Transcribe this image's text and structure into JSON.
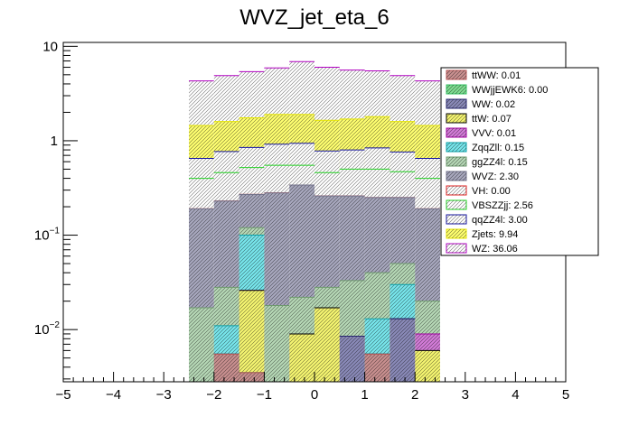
{
  "chart_data": {
    "type": "bar",
    "stacked": true,
    "title": "WVZ_jet_eta_6",
    "xlabel": "",
    "ylabel": "",
    "yscale": "log",
    "xlim": [
      -5,
      5
    ],
    "ylim": [
      0.0028,
      11
    ],
    "x_ticks": [
      -5,
      -4,
      -3,
      -2,
      -1,
      0,
      1,
      2,
      3,
      4,
      5
    ],
    "x_tick_labels": [
      "−5",
      "−4",
      "−3",
      "−2",
      "−1",
      "0",
      "1",
      "2",
      "3",
      "4",
      "5"
    ],
    "y_ticks": [
      {
        "value": 10,
        "label": "10",
        "sup": ""
      },
      {
        "value": 1,
        "label": "1",
        "sup": ""
      },
      {
        "value": 0.1,
        "label": "10",
        "sup": "−1"
      },
      {
        "value": 0.01,
        "label": "10",
        "sup": "−2"
      }
    ],
    "bin_edges": [
      -2.5,
      -2,
      -1.5,
      -1,
      -0.5,
      0,
      0.5,
      1,
      1.5,
      2,
      2.5
    ],
    "cumulative_top": {
      "ttWW": [
        0,
        0.0055,
        0.0035,
        0,
        0,
        0,
        0,
        0.0055,
        0,
        0.0028
      ],
      "WWjjEWK6": [
        0,
        0.0055,
        0.0035,
        0,
        0,
        0,
        0,
        0.0055,
        0,
        0.0028
      ],
      "WW": [
        0,
        0.0055,
        0.0035,
        0,
        0,
        0,
        0.0085,
        0.0055,
        0.013,
        0.0028
      ],
      "ttW": [
        0,
        0.0055,
        0.026,
        0,
        0.009,
        0.017,
        0.0085,
        0.0055,
        0.013,
        0.006
      ],
      "VVV": [
        0,
        0.0055,
        0.026,
        0,
        0.009,
        0.017,
        0.0085,
        0.0055,
        0.013,
        0.009
      ],
      "ZqqZll": [
        0,
        0.011,
        0.1,
        0,
        0.009,
        0.017,
        0.0085,
        0.013,
        0.03,
        0.009
      ],
      "ggZZ4l": [
        0.017,
        0.028,
        0.12,
        0.018,
        0.022,
        0.028,
        0.033,
        0.04,
        0.05,
        0.02
      ],
      "WVZ": [
        0.19,
        0.23,
        0.27,
        0.28,
        0.34,
        0.26,
        0.26,
        0.25,
        0.25,
        0.19
      ],
      "VH": [
        0.19,
        0.23,
        0.27,
        0.28,
        0.34,
        0.26,
        0.26,
        0.25,
        0.25,
        0.19
      ],
      "VBSZZjj": [
        0.4,
        0.46,
        0.52,
        0.55,
        0.55,
        0.46,
        0.5,
        0.5,
        0.47,
        0.4
      ],
      "qqZZ4l": [
        0.65,
        0.77,
        0.85,
        0.92,
        0.94,
        0.78,
        0.8,
        0.84,
        0.76,
        0.65
      ],
      "Zjets": [
        1.45,
        1.6,
        1.75,
        1.9,
        1.9,
        1.65,
        1.7,
        1.8,
        1.6,
        1.45
      ],
      "WZ": [
        4.3,
        4.9,
        5.4,
        5.9,
        6.9,
        6.0,
        5.6,
        5.5,
        4.9,
        4.3
      ]
    },
    "draw_order": [
      "WZ",
      "Zjets",
      "qqZZ4l",
      "VBSZZjj",
      "VH",
      "WVZ",
      "ggZZ4l",
      "ZqqZll",
      "VVV",
      "ttW",
      "WW",
      "WWjjEWK6",
      "ttWW"
    ],
    "styles": {
      "ttWW": {
        "color": "#b85555",
        "fill": "#c99090"
      },
      "WWjjEWK6": {
        "color": "#30c060",
        "fill": "#80de92"
      },
      "WW": {
        "color": "#25256e",
        "fill": "#8a8ab8"
      },
      "ttW": {
        "color": "#000000",
        "fill": "#f5f571"
      },
      "VVV": {
        "color": "#a000a0",
        "fill": "#d37cd8"
      },
      "ZqqZll": {
        "color": "#0aa0a8",
        "fill": "#78e6ec"
      },
      "ggZZ4l": {
        "color": "#6e9a6e",
        "fill": "#b6d8b6"
      },
      "WVZ": {
        "color": "#707088",
        "fill": "#a8a8be"
      },
      "VH": {
        "color": "#e02020",
        "fill": "#ffffff"
      },
      "VBSZZjj": {
        "color": "#20d020",
        "fill": "#ffffff"
      },
      "qqZZ4l": {
        "color": "#1414a0",
        "fill": "#ffffff"
      },
      "Zjets": {
        "color": "#e6e600",
        "fill": "#ffff70"
      },
      "WZ": {
        "color": "#b000c0",
        "fill": "#ffffff"
      }
    },
    "legend_position": "top-right",
    "legend": [
      {
        "key": "ttWW",
        "label": "ttWW: 0.01"
      },
      {
        "key": "WWjjEWK6",
        "label": "WWjjEWK6: 0.00"
      },
      {
        "key": "WW",
        "label": "WW: 0.02"
      },
      {
        "key": "ttW",
        "label": "ttW: 0.07"
      },
      {
        "key": "VVV",
        "label": "VVV: 0.01"
      },
      {
        "key": "ZqqZll",
        "label": "ZqqZll: 0.15"
      },
      {
        "key": "ggZZ4l",
        "label": "ggZZ4l: 0.15"
      },
      {
        "key": "WVZ",
        "label": "WVZ: 2.30"
      },
      {
        "key": "VH",
        "label": "VH: 0.00"
      },
      {
        "key": "VBSZZjj",
        "label": "VBSZZjj: 2.56"
      },
      {
        "key": "qqZZ4l",
        "label": "qqZZ4l: 3.00"
      },
      {
        "key": "Zjets",
        "label": "Zjets: 9.94"
      },
      {
        "key": "WZ",
        "label": "WZ: 36.06"
      }
    ]
  }
}
